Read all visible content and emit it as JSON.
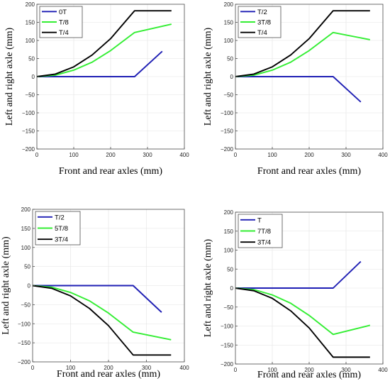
{
  "chart_data": [
    {
      "type": "line",
      "xlabel": "Front and rear axles (mm)",
      "ylabel": "Left and right axle (mm)",
      "xlim": [
        0,
        400
      ],
      "ylim": [
        -200,
        200
      ],
      "xticks": [
        0,
        100,
        200,
        300,
        400
      ],
      "yticks": [
        -200,
        -150,
        -100,
        -50,
        0,
        50,
        100,
        150,
        200
      ],
      "grid": true,
      "legend_position": "top-left",
      "series": [
        {
          "name": "0T",
          "color": "#1f1fb4",
          "x": [
            0,
            265,
            340
          ],
          "y": [
            0,
            0,
            70
          ]
        },
        {
          "name": "T/8",
          "color": "#33ee33",
          "x": [
            0,
            50,
            100,
            150,
            200,
            265,
            365
          ],
          "y": [
            0,
            4,
            18,
            40,
            72,
            122,
            145
          ]
        },
        {
          "name": "T/4",
          "color": "#000000",
          "x": [
            0,
            50,
            100,
            150,
            200,
            265,
            365
          ],
          "y": [
            0,
            7,
            27,
            60,
            105,
            182,
            182
          ]
        }
      ]
    },
    {
      "type": "line",
      "xlabel": "Front and rear axles (mm)",
      "ylabel": "Left and right axle (mm)",
      "xlim": [
        0,
        400
      ],
      "ylim": [
        -200,
        200
      ],
      "xticks": [
        0,
        100,
        200,
        300,
        400
      ],
      "yticks": [
        -200,
        -150,
        -100,
        -50,
        0,
        50,
        100,
        150,
        200
      ],
      "grid": true,
      "legend_position": "top-left",
      "series": [
        {
          "name": "T/2",
          "color": "#1f1fb4",
          "x": [
            0,
            265,
            340
          ],
          "y": [
            0,
            0,
            -70
          ]
        },
        {
          "name": "3T/8",
          "color": "#33ee33",
          "x": [
            0,
            50,
            100,
            150,
            200,
            265,
            365
          ],
          "y": [
            0,
            4,
            18,
            40,
            72,
            122,
            102
          ]
        },
        {
          "name": "T/4",
          "color": "#000000",
          "x": [
            0,
            50,
            100,
            150,
            200,
            265,
            365
          ],
          "y": [
            0,
            7,
            27,
            60,
            105,
            182,
            182
          ]
        }
      ]
    },
    {
      "type": "line",
      "xlabel": "Front and rear axles (mm)",
      "ylabel": "Left and right axle (mm)",
      "xlim": [
        0,
        400
      ],
      "ylim": [
        -200,
        200
      ],
      "xticks": [
        0,
        100,
        200,
        300,
        400
      ],
      "yticks": [
        -200,
        -150,
        -100,
        -50,
        0,
        50,
        100,
        150,
        200
      ],
      "grid": true,
      "legend_position": "top-left",
      "series": [
        {
          "name": "T/2",
          "color": "#1f1fb4",
          "x": [
            0,
            265,
            340
          ],
          "y": [
            0,
            0,
            -70
          ]
        },
        {
          "name": "5T/8",
          "color": "#33ee33",
          "x": [
            0,
            50,
            100,
            150,
            200,
            265,
            365
          ],
          "y": [
            0,
            -4,
            -18,
            -40,
            -72,
            -122,
            -142
          ]
        },
        {
          "name": "3T/4",
          "color": "#000000",
          "x": [
            0,
            50,
            100,
            150,
            200,
            265,
            365
          ],
          "y": [
            0,
            -7,
            -27,
            -60,
            -105,
            -182,
            -182
          ]
        }
      ]
    },
    {
      "type": "line",
      "xlabel": "Front and rear axles (mm)",
      "ylabel": "Left and right axle (mm)",
      "xlim": [
        0,
        400
      ],
      "ylim": [
        -200,
        200
      ],
      "xticks": [
        0,
        100,
        200,
        300,
        400
      ],
      "yticks": [
        -200,
        -150,
        -100,
        -50,
        0,
        50,
        100,
        150,
        200
      ],
      "grid": true,
      "legend_position": "top-left",
      "series": [
        {
          "name": "T",
          "color": "#1f1fb4",
          "x": [
            0,
            265,
            340
          ],
          "y": [
            0,
            0,
            70
          ]
        },
        {
          "name": "7T/8",
          "color": "#33ee33",
          "x": [
            0,
            50,
            100,
            150,
            200,
            265,
            365
          ],
          "y": [
            0,
            -4,
            -18,
            -40,
            -72,
            -122,
            -98
          ]
        },
        {
          "name": "3T/4",
          "color": "#000000",
          "x": [
            0,
            50,
            100,
            150,
            200,
            265,
            365
          ],
          "y": [
            0,
            -7,
            -27,
            -60,
            -105,
            -182,
            -182
          ]
        }
      ]
    }
  ]
}
